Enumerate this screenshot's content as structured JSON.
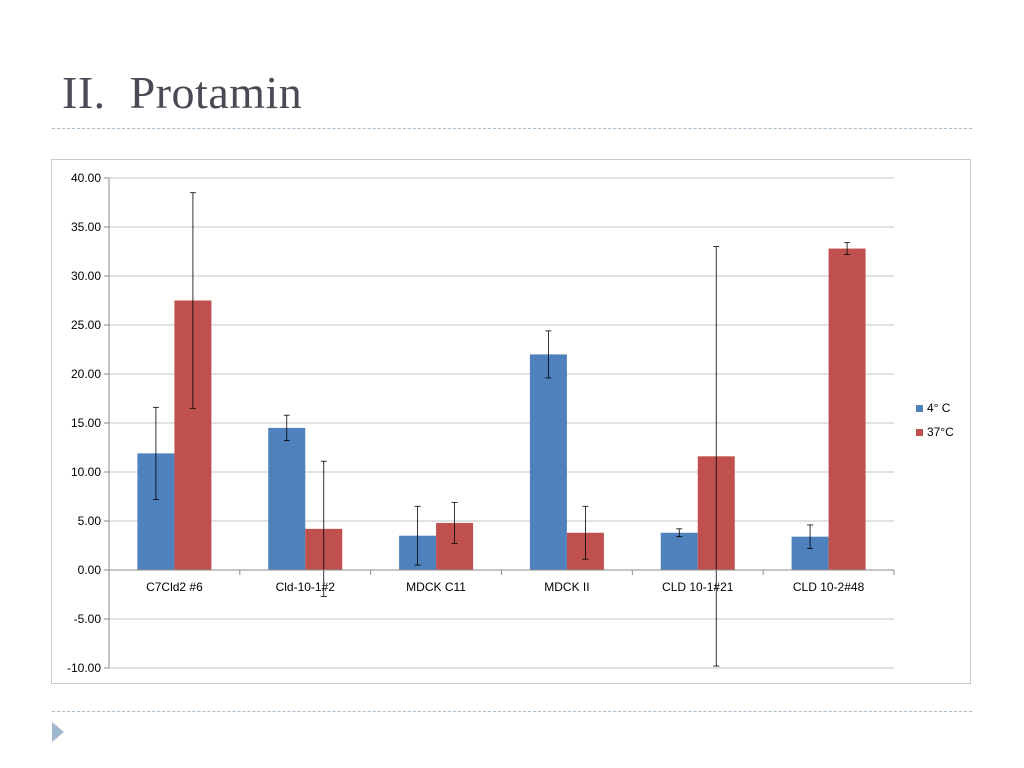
{
  "slide": {
    "title": "II.  Protamin"
  },
  "chart_data": {
    "type": "bar",
    "title": "",
    "xlabel": "",
    "ylabel": "",
    "ylim": [
      -10,
      40
    ],
    "ytick_step": 5,
    "ytick_format_decimals": 2,
    "grid": true,
    "legend_position": "right",
    "categories": [
      "C7Cld2 #6",
      "Cld-10-1#2",
      "MDCK C11",
      "MDCK II",
      "CLD 10-1#21",
      "CLD 10-2#48"
    ],
    "series": [
      {
        "name": "4° C",
        "color": "#4f81bd",
        "values": [
          11.9,
          14.5,
          3.5,
          22.0,
          3.8,
          3.4
        ],
        "error": [
          4.7,
          1.3,
          3.0,
          2.4,
          0.4,
          1.2
        ]
      },
      {
        "name": "37°C",
        "color": "#c0504d",
        "values": [
          27.5,
          4.2,
          4.8,
          3.8,
          11.6,
          32.8
        ],
        "error": [
          11.0,
          6.9,
          2.1,
          2.7,
          21.4,
          0.6
        ]
      }
    ]
  }
}
